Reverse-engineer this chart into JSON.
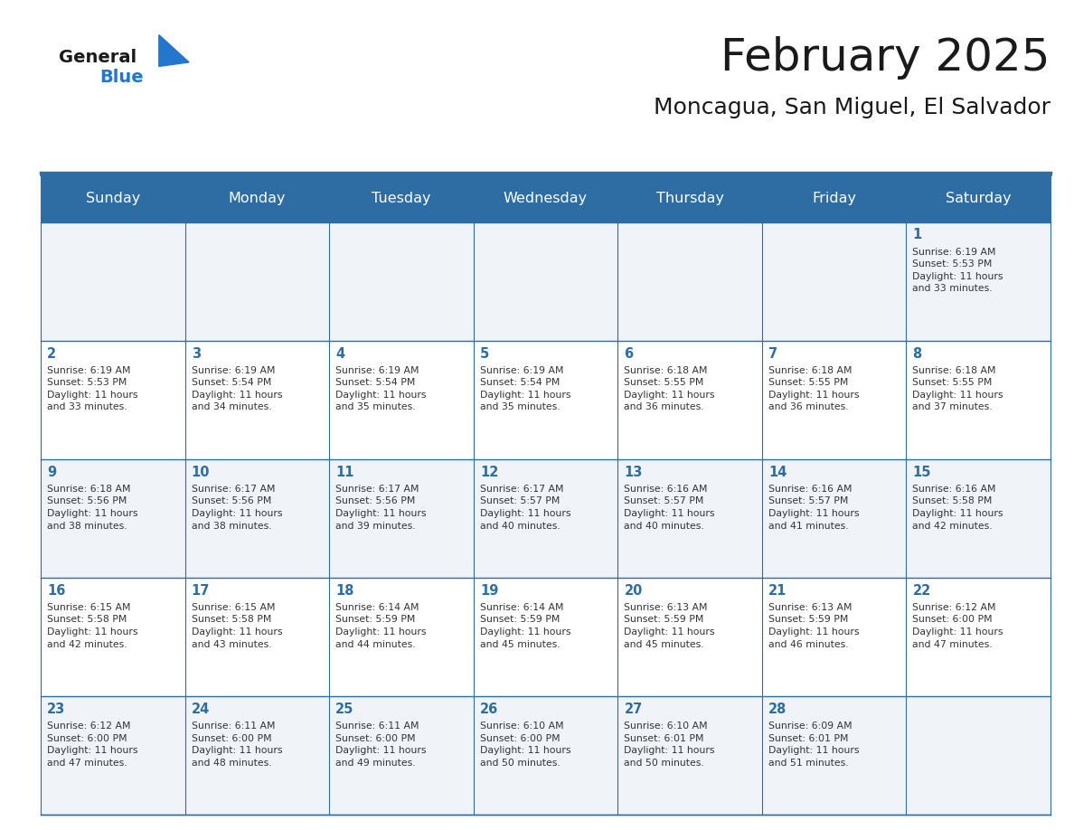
{
  "title": "February 2025",
  "subtitle": "Moncagua, San Miguel, El Salvador",
  "days_of_week": [
    "Sunday",
    "Monday",
    "Tuesday",
    "Wednesday",
    "Thursday",
    "Friday",
    "Saturday"
  ],
  "header_bg": "#2e6da4",
  "header_text": "#ffffff",
  "cell_bg_odd": "#f0f4f8",
  "cell_bg_even": "#ffffff",
  "border_color": "#2e6da4",
  "title_color": "#1a1a1a",
  "subtitle_color": "#1a1a1a",
  "day_number_color": "#2e6da4",
  "info_color": "#333333",
  "logo_general_color": "#1a1a1a",
  "logo_blue_color": "#2277cc",
  "calendar": [
    [
      null,
      null,
      null,
      null,
      null,
      null,
      {
        "day": 1,
        "sunrise": "6:19 AM",
        "sunset": "5:53 PM",
        "daylight_hours": 11,
        "daylight_minutes": 33
      }
    ],
    [
      {
        "day": 2,
        "sunrise": "6:19 AM",
        "sunset": "5:53 PM",
        "daylight_hours": 11,
        "daylight_minutes": 33
      },
      {
        "day": 3,
        "sunrise": "6:19 AM",
        "sunset": "5:54 PM",
        "daylight_hours": 11,
        "daylight_minutes": 34
      },
      {
        "day": 4,
        "sunrise": "6:19 AM",
        "sunset": "5:54 PM",
        "daylight_hours": 11,
        "daylight_minutes": 35
      },
      {
        "day": 5,
        "sunrise": "6:19 AM",
        "sunset": "5:54 PM",
        "daylight_hours": 11,
        "daylight_minutes": 35
      },
      {
        "day": 6,
        "sunrise": "6:18 AM",
        "sunset": "5:55 PM",
        "daylight_hours": 11,
        "daylight_minutes": 36
      },
      {
        "day": 7,
        "sunrise": "6:18 AM",
        "sunset": "5:55 PM",
        "daylight_hours": 11,
        "daylight_minutes": 36
      },
      {
        "day": 8,
        "sunrise": "6:18 AM",
        "sunset": "5:55 PM",
        "daylight_hours": 11,
        "daylight_minutes": 37
      }
    ],
    [
      {
        "day": 9,
        "sunrise": "6:18 AM",
        "sunset": "5:56 PM",
        "daylight_hours": 11,
        "daylight_minutes": 38
      },
      {
        "day": 10,
        "sunrise": "6:17 AM",
        "sunset": "5:56 PM",
        "daylight_hours": 11,
        "daylight_minutes": 38
      },
      {
        "day": 11,
        "sunrise": "6:17 AM",
        "sunset": "5:56 PM",
        "daylight_hours": 11,
        "daylight_minutes": 39
      },
      {
        "day": 12,
        "sunrise": "6:17 AM",
        "sunset": "5:57 PM",
        "daylight_hours": 11,
        "daylight_minutes": 40
      },
      {
        "day": 13,
        "sunrise": "6:16 AM",
        "sunset": "5:57 PM",
        "daylight_hours": 11,
        "daylight_minutes": 40
      },
      {
        "day": 14,
        "sunrise": "6:16 AM",
        "sunset": "5:57 PM",
        "daylight_hours": 11,
        "daylight_minutes": 41
      },
      {
        "day": 15,
        "sunrise": "6:16 AM",
        "sunset": "5:58 PM",
        "daylight_hours": 11,
        "daylight_minutes": 42
      }
    ],
    [
      {
        "day": 16,
        "sunrise": "6:15 AM",
        "sunset": "5:58 PM",
        "daylight_hours": 11,
        "daylight_minutes": 42
      },
      {
        "day": 17,
        "sunrise": "6:15 AM",
        "sunset": "5:58 PM",
        "daylight_hours": 11,
        "daylight_minutes": 43
      },
      {
        "day": 18,
        "sunrise": "6:14 AM",
        "sunset": "5:59 PM",
        "daylight_hours": 11,
        "daylight_minutes": 44
      },
      {
        "day": 19,
        "sunrise": "6:14 AM",
        "sunset": "5:59 PM",
        "daylight_hours": 11,
        "daylight_minutes": 45
      },
      {
        "day": 20,
        "sunrise": "6:13 AM",
        "sunset": "5:59 PM",
        "daylight_hours": 11,
        "daylight_minutes": 45
      },
      {
        "day": 21,
        "sunrise": "6:13 AM",
        "sunset": "5:59 PM",
        "daylight_hours": 11,
        "daylight_minutes": 46
      },
      {
        "day": 22,
        "sunrise": "6:12 AM",
        "sunset": "6:00 PM",
        "daylight_hours": 11,
        "daylight_minutes": 47
      }
    ],
    [
      {
        "day": 23,
        "sunrise": "6:12 AM",
        "sunset": "6:00 PM",
        "daylight_hours": 11,
        "daylight_minutes": 47
      },
      {
        "day": 24,
        "sunrise": "6:11 AM",
        "sunset": "6:00 PM",
        "daylight_hours": 11,
        "daylight_minutes": 48
      },
      {
        "day": 25,
        "sunrise": "6:11 AM",
        "sunset": "6:00 PM",
        "daylight_hours": 11,
        "daylight_minutes": 49
      },
      {
        "day": 26,
        "sunrise": "6:10 AM",
        "sunset": "6:00 PM",
        "daylight_hours": 11,
        "daylight_minutes": 50
      },
      {
        "day": 27,
        "sunrise": "6:10 AM",
        "sunset": "6:01 PM",
        "daylight_hours": 11,
        "daylight_minutes": 50
      },
      {
        "day": 28,
        "sunrise": "6:09 AM",
        "sunset": "6:01 PM",
        "daylight_hours": 11,
        "daylight_minutes": 51
      },
      null
    ]
  ]
}
